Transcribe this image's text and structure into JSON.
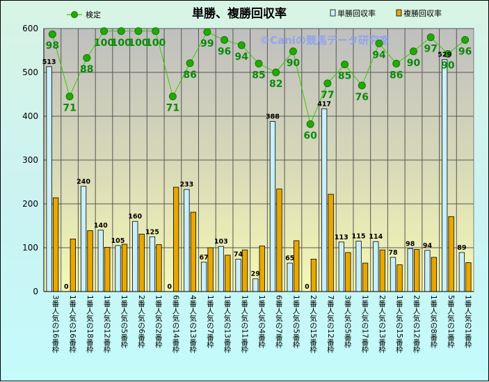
{
  "chart_data": {
    "type": "bar",
    "title": "単勝、複勝回収率",
    "watermark": "©Caniの競馬データ研究室",
    "ylim": [
      0,
      600
    ],
    "yticks": [
      0,
      100,
      200,
      300,
      400,
      500,
      600
    ],
    "categories": [
      "3番人気の16番枠",
      "1番人気の16番枠",
      "1番人気の18番枠",
      "1番人気の12番枠",
      "1番人気の5番枠",
      "2番人気の6番枠",
      "1番人気の2番枠",
      "6番人気の14番枠",
      "4番人気の13番枠",
      "1番人気の7番枠",
      "1番人気の13番枠",
      "1番人気の11番枠",
      "1番人気の4番枠",
      "6番人気の7番枠",
      "1番人気の5番枠",
      "2番人気の15番枠",
      "7番人気の12番枠",
      "3番人気の5番枠",
      "1番人気の17番枠",
      "2番人気の13番枠",
      "1番人気の15番枠",
      "2番人気の12番枠",
      "1番人気の8番枠",
      "5番人気の1番枠",
      "1番人気の1番枠"
    ],
    "series": [
      {
        "name": "単勝回収率",
        "color": "#c8f0ff",
        "values": [
          513,
          0,
          240,
          140,
          105,
          160,
          125,
          0,
          233,
          67,
          103,
          74,
          29,
          388,
          65,
          0,
          417,
          113,
          115,
          114,
          78,
          98,
          94,
          529,
          89
        ],
        "labels": [
          "513",
          "0",
          "240",
          "140",
          "105",
          "160",
          "125",
          "0",
          "233",
          "67",
          "103",
          "74",
          "29",
          "388",
          "65",
          "0",
          "417",
          "113",
          "115",
          "114",
          "78",
          "98",
          "94",
          "529",
          "89"
        ]
      },
      {
        "name": "複勝回収率",
        "color": "#e8a800",
        "values": [
          214,
          120,
          139,
          101,
          108,
          131,
          107,
          238,
          181,
          100,
          83,
          95,
          104,
          234,
          116,
          74,
          222,
          89,
          65,
          95,
          61,
          96,
          78,
          171,
          66
        ]
      },
      {
        "name": "検定",
        "type": "line",
        "color": "#33cc00",
        "values": [
          587,
          445,
          533,
          594,
          594,
          594,
          594,
          445,
          521,
          592,
          574,
          562,
          520,
          500,
          548,
          382,
          475,
          518,
          470,
          566,
          520,
          548,
          580,
          542,
          574
        ],
        "labels": [
          "98",
          "71",
          "88",
          "100",
          "100",
          "100",
          "100",
          "71",
          "86",
          "99",
          "96",
          "94",
          "85",
          "82",
          "90",
          "60",
          "77",
          "85",
          "76",
          "94",
          "86",
          "90",
          "97",
          "90",
          "96"
        ]
      }
    ],
    "legend_position": "top"
  }
}
